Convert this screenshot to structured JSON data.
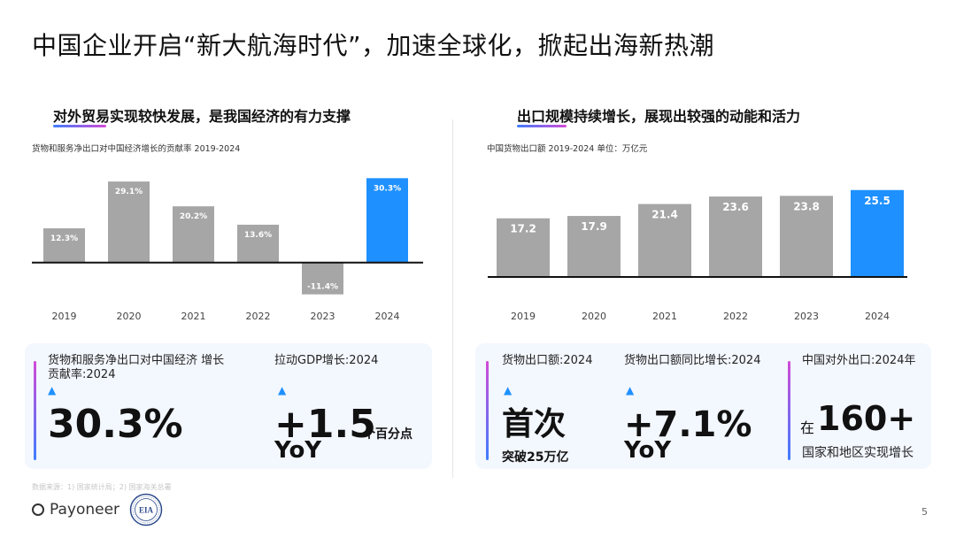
{
  "page": {
    "title": "中国企业开启“新大航海时代”，加速全球化，掀起出海新热潮",
    "source": "数据来源：1) 国家统计局；2) 国家海关总署",
    "logo_text": "Payoneer",
    "seal_text": "EIA",
    "page_number": "5"
  },
  "left": {
    "heading": "对外贸易实现较快发展，是我国经济的有力支撑",
    "caption": "货物和服务净出口对中国经济增长的贡献率 2019-2024",
    "stats": [
      {
        "label": "货物和服务净出口对中国经济 增长贡献率:2024",
        "arrow": "▲",
        "big": "30.3%"
      },
      {
        "label": "拉动GDP增长:2024",
        "arrow": "▲",
        "big": "+1.5",
        "suffix": "个百分点",
        "sub": "YoY"
      }
    ]
  },
  "right": {
    "heading": "出口规模持续增长，展现出较强的动能和活力",
    "caption": "中国货物出口额 2019-2024 单位：万亿元",
    "stats": [
      {
        "label": "货物出口额:2024",
        "arrow": "▲",
        "big": "首次",
        "sub": "突破25万亿"
      },
      {
        "label": "货物出口额同比增长:2024",
        "arrow": "▲",
        "big": "+7.1%",
        "sub": "YoY"
      },
      {
        "label": "中国对外出口:2024年",
        "prefix": "在",
        "big": "160+",
        "sub": "国家和地区实现增长"
      }
    ]
  },
  "colors": {
    "bar": "#a6a6a6",
    "highlight": "#1e90ff",
    "axis": "#111111",
    "accent_gradient": [
      "#d24bd6",
      "#3f7dff"
    ]
  },
  "chart_data": [
    {
      "type": "bar",
      "title": "货物和服务净出口对中国经济增长的贡献率 2019-2024",
      "categories": [
        "2019",
        "2020",
        "2021",
        "2022",
        "2023",
        "2024"
      ],
      "values": [
        12.3,
        29.1,
        20.2,
        13.6,
        -11.4,
        30.3
      ],
      "labels": [
        "12.3%",
        "29.1%",
        "20.2%",
        "13.6%",
        "-11.4%",
        "30.3%"
      ],
      "highlight_index": 5,
      "ylim": [
        -15,
        32
      ]
    },
    {
      "type": "bar",
      "title": "中国货物出口额 2019-2024 单位：万亿元",
      "categories": [
        "2019",
        "2020",
        "2021",
        "2022",
        "2023",
        "2024"
      ],
      "values": [
        17.2,
        17.9,
        21.4,
        23.6,
        23.8,
        25.5
      ],
      "labels": [
        "17.2",
        "17.9",
        "21.4",
        "23.6",
        "23.8",
        "25.5"
      ],
      "highlight_index": 5,
      "ylim": [
        0,
        27
      ]
    }
  ]
}
